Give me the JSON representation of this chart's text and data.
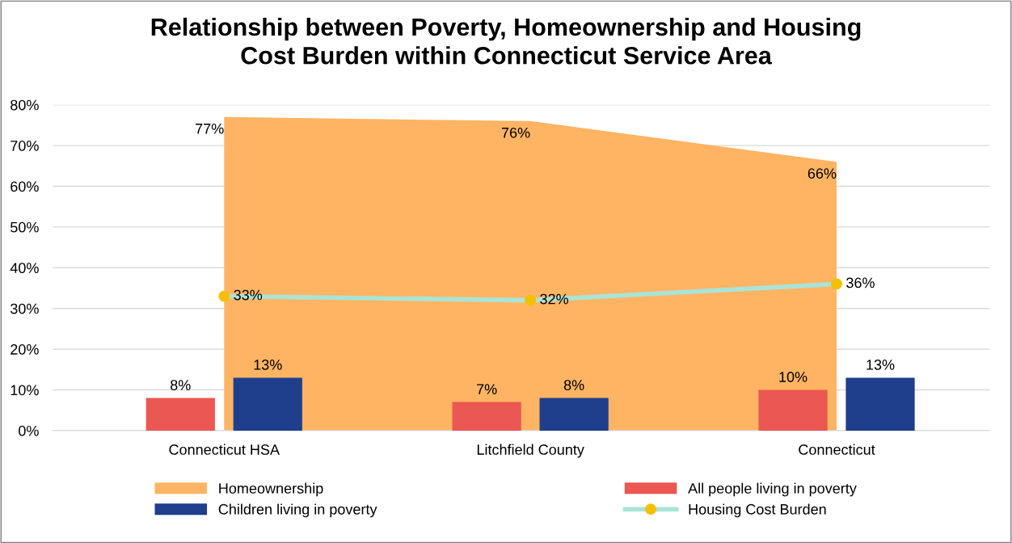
{
  "chart_data": {
    "type": "bar",
    "title": "Relationship between Poverty, Homeownership and Housing\nCost Burden within Connecticut Service Area",
    "categories": [
      "Connecticut HSA",
      "Litchfield County",
      "Connecticut"
    ],
    "series": [
      {
        "name": "Homeownership",
        "type": "area",
        "color": "#ffb463",
        "values": [
          77,
          76,
          66
        ],
        "value_labels": [
          "77%",
          "76%",
          "66%"
        ]
      },
      {
        "name": "All people living in poverty",
        "color": "#eb5752",
        "values": [
          8,
          7,
          10
        ],
        "value_labels": [
          "8%",
          "7%",
          "10%"
        ]
      },
      {
        "name": "Children living in poverty",
        "color": "#1f3f8c",
        "values": [
          13,
          8,
          13
        ],
        "value_labels": [
          "13%",
          "8%",
          "13%"
        ]
      },
      {
        "name": "Housing Cost Burden",
        "type": "line",
        "color": "#a9e4d6",
        "colors": [
          "#f5c000",
          "#f5c000",
          "#f5c000"
        ],
        "marker": "circle",
        "values": [
          33,
          32,
          36
        ],
        "value_labels": [
          "33%",
          "32%",
          "36%"
        ]
      }
    ],
    "ylim": [
      0,
      80
    ],
    "yticks": [
      {
        "value": 0,
        "label": "0%"
      },
      {
        "value": 10,
        "label": "10%"
      },
      {
        "value": 20,
        "label": "20%"
      },
      {
        "value": 30,
        "label": "30%"
      },
      {
        "value": 40,
        "label": "40%"
      },
      {
        "value": 50,
        "label": "50%"
      },
      {
        "value": 60,
        "label": "60%"
      },
      {
        "value": 70,
        "label": "70%"
      },
      {
        "value": 80,
        "label": "80%"
      }
    ],
    "grid": "y",
    "legend": "bottom"
  }
}
